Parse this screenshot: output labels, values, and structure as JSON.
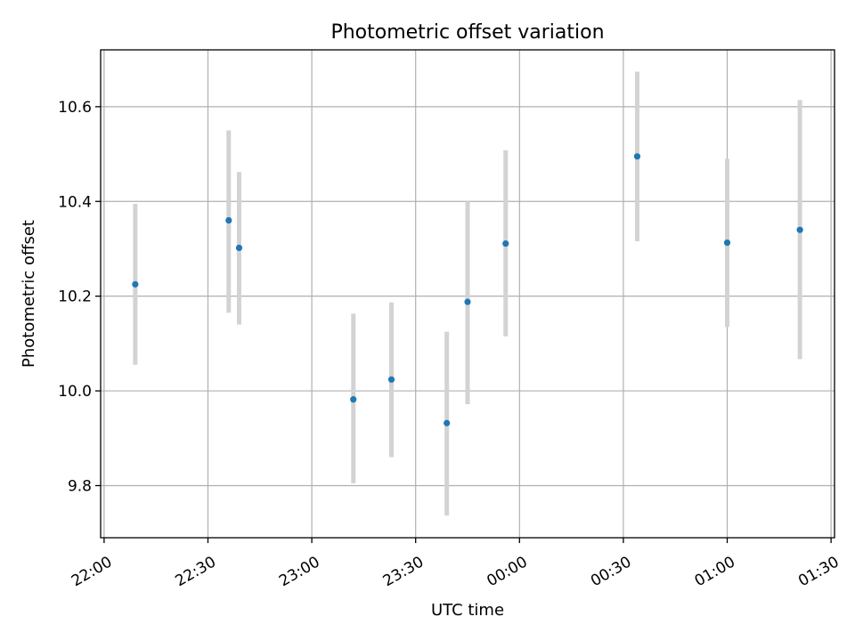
{
  "chart_data": {
    "type": "scatter",
    "title": "Photometric offset variation",
    "xlabel": "UTC time",
    "ylabel": "Photometric offset",
    "xlim": [
      "21:59",
      "01:31"
    ],
    "ylim": [
      9.69,
      10.72
    ],
    "grid": true,
    "x_ticks": [
      "22:00",
      "22:30",
      "23:00",
      "23:30",
      "00:00",
      "00:30",
      "01:00",
      "01:30"
    ],
    "y_ticks": [
      9.8,
      10.0,
      10.2,
      10.4,
      10.6
    ],
    "y_tick_labels": [
      "9.8",
      "10.0",
      "10.2",
      "10.4",
      "10.6"
    ],
    "marker_color": "#1f77b4",
    "errorbar_color": "#d3d3d3",
    "points": [
      {
        "time": "22:09",
        "y": 10.225,
        "ylow": 10.055,
        "yhigh": 10.395
      },
      {
        "time": "22:36",
        "y": 10.36,
        "ylow": 10.165,
        "yhigh": 10.55
      },
      {
        "time": "22:39",
        "y": 10.302,
        "ylow": 10.14,
        "yhigh": 10.462
      },
      {
        "time": "23:12",
        "y": 9.982,
        "ylow": 9.805,
        "yhigh": 10.163
      },
      {
        "time": "23:23",
        "y": 10.024,
        "ylow": 9.86,
        "yhigh": 10.187
      },
      {
        "time": "23:39",
        "y": 9.932,
        "ylow": 9.737,
        "yhigh": 10.125
      },
      {
        "time": "23:45",
        "y": 10.188,
        "ylow": 9.972,
        "yhigh": 10.4
      },
      {
        "time": "23:56",
        "y": 10.311,
        "ylow": 10.115,
        "yhigh": 10.508
      },
      {
        "time": "00:34",
        "y": 10.495,
        "ylow": 10.316,
        "yhigh": 10.674
      },
      {
        "time": "01:00",
        "y": 10.313,
        "ylow": 10.135,
        "yhigh": 10.49
      },
      {
        "time": "01:21",
        "y": 10.34,
        "ylow": 10.067,
        "yhigh": 10.614
      }
    ]
  }
}
